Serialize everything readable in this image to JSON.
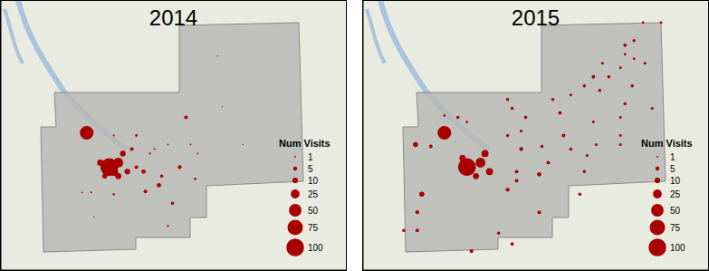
{
  "chart_data": [
    {
      "type": "scatter",
      "title": "2014",
      "color": "#a80000",
      "xlim": [
        0,
        383
      ],
      "ylim": [
        0,
        299
      ],
      "xticks": [
        0,
        383
      ],
      "yticks": [
        0,
        299
      ],
      "tick_labels": false,
      "grid": false,
      "x": [
        95,
        120,
        130,
        125,
        110,
        135,
        140,
        115,
        130,
        205,
        150,
        158,
        145,
        178,
        198,
        175,
        160,
        190,
        150,
        215,
        125,
        170,
        185,
        165,
        90,
        100,
        125,
        210,
        218,
        240,
        245,
        268,
        103,
        185
      ],
      "y": [
        152,
        114,
        119,
        109,
        119,
        129,
        109,
        104,
        104,
        169,
        114,
        109,
        134,
        104,
        114,
        94,
        87,
        74,
        149,
        101,
        149,
        134,
        139,
        129,
        86,
        86,
        84,
        139,
        129,
        237,
        181,
        139,
        59,
        49
      ],
      "sizes": [
        150,
        250,
        75,
        60,
        30,
        25,
        25,
        20,
        30,
        10,
        10,
        15,
        10,
        8,
        12,
        15,
        10,
        8,
        5,
        5,
        3,
        3,
        2,
        3,
        2,
        3,
        4,
        2,
        2,
        1,
        1,
        1,
        1,
        3
      ],
      "size_title": "Num Visits",
      "size_ticks": [
        1,
        5,
        10,
        25,
        50,
        75,
        100
      ],
      "size_lim": [
        0,
        100
      ]
    },
    {
      "type": "scatter",
      "title": "2015",
      "color": "#a80000",
      "xlim": [
        0,
        383
      ],
      "ylim": [
        0,
        299
      ],
      "xticks": [
        0,
        383
      ],
      "yticks": [
        0,
        299
      ],
      "tick_labels": false,
      "grid": false,
      "x": [
        90,
        115,
        130,
        135,
        140,
        110,
        125,
        75,
        105,
        115,
        90,
        58,
        65,
        60,
        60,
        45,
        120,
        150,
        165,
        160,
        165,
        180,
        175,
        160,
        175,
        170,
        160,
        170,
        195,
        205,
        198,
        230,
        222,
        218,
        210,
        230,
        240,
        195,
        245,
        248,
        255,
        262,
        245,
        265,
        272,
        290,
        300,
        290,
        300,
        285,
        298,
        312,
        320,
        290,
        285,
        255,
        285,
        258,
        285,
        310,
        330
      ],
      "y": [
        152,
        114,
        119,
        129,
        109,
        124,
        104,
        137,
        169,
        164,
        171,
        139,
        84,
        64,
        44,
        44,
        21,
        41,
        29,
        189,
        179,
        169,
        154,
        149,
        134,
        109,
        89,
        99,
        106,
        119,
        137,
        134,
        149,
        174,
        189,
        194,
        84,
        64,
        109,
        127,
        214,
        199,
        204,
        229,
        214,
        249,
        254,
        239,
        234,
        224,
        204,
        229,
        179,
        184,
        169,
        164,
        139,
        139,
        149,
        274,
        274
      ],
      "sizes": [
        150,
        250,
        75,
        40,
        40,
        30,
        30,
        10,
        8,
        5,
        5,
        20,
        20,
        12,
        10,
        8,
        12,
        8,
        10,
        8,
        8,
        8,
        6,
        8,
        12,
        10,
        12,
        10,
        15,
        10,
        8,
        8,
        10,
        10,
        8,
        6,
        8,
        10,
        8,
        6,
        10,
        8,
        8,
        6,
        8,
        10,
        8,
        5,
        5,
        5,
        8,
        6,
        6,
        8,
        6,
        6,
        6,
        6,
        5,
        5,
        5
      ],
      "size_title": "Num Visits",
      "size_ticks": [
        1,
        5,
        10,
        25,
        50,
        75,
        100
      ],
      "size_lim": [
        0,
        100
      ]
    }
  ]
}
